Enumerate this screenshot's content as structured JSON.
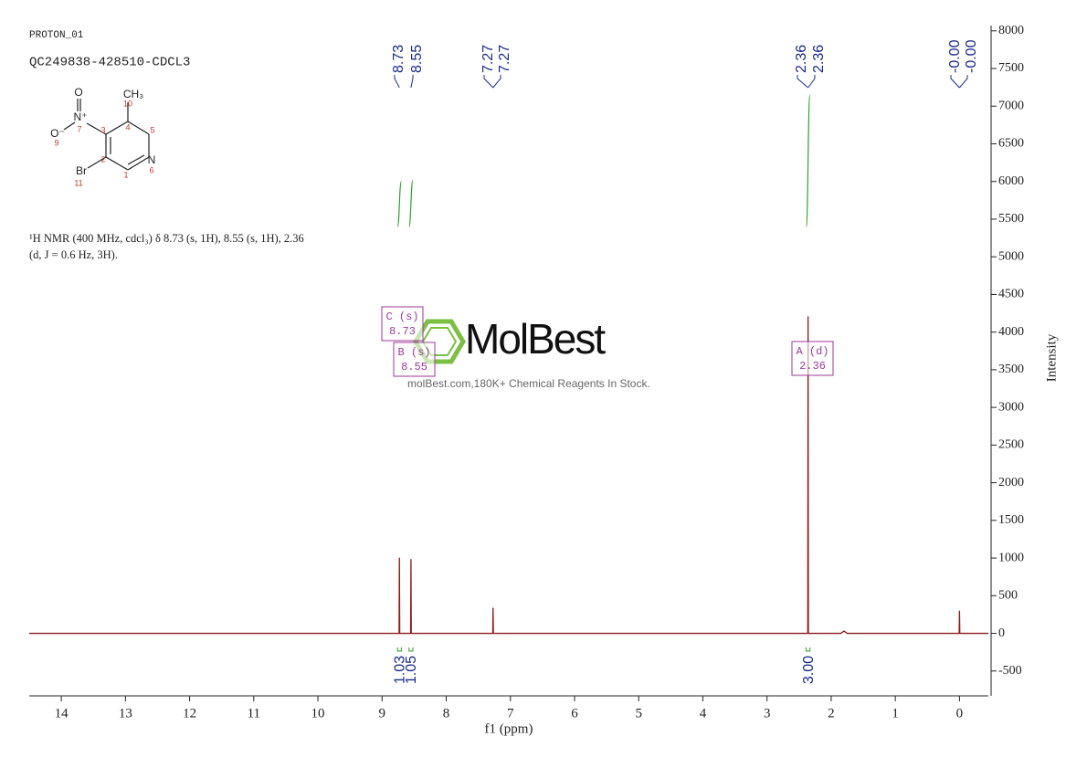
{
  "chart_data": {
    "type": "line",
    "header": [
      "PROTON_01",
      "QC249838-428510-CDCL3"
    ],
    "description": [
      "¹H NMR (400 MHz, cdcl₃) δ 8.73 (s, 1H), 8.55 (s, 1H), 2.36",
      "(d, J = 0.6 Hz, 3H)."
    ],
    "structure": {
      "atoms": [
        "O",
        "N⁺",
        "CH₃",
        "O⁻",
        "N",
        "Br"
      ],
      "numbers": [
        "10",
        "4",
        "3",
        "7",
        "9",
        "5",
        "2",
        "1",
        "6",
        "11"
      ]
    },
    "watermark": [
      "MolBest",
      "molBest.com,180K+ Chemical Reagents In Stock."
    ],
    "x_label": "f1 (ppm)",
    "y_label": "Intensity",
    "xlim": [
      14.5,
      -0.45
    ],
    "xticks": [
      14,
      13,
      12,
      11,
      10,
      9,
      8,
      7,
      6,
      5,
      4,
      3,
      2,
      1,
      0
    ],
    "ylim": [
      -830,
      8070
    ],
    "yticks": [
      -500,
      0,
      500,
      1000,
      1500,
      2000,
      2500,
      3000,
      3500,
      4000,
      4500,
      5000,
      5500,
      6000,
      6500,
      7000,
      7500,
      8000
    ],
    "color": "#8b1a1a",
    "x": [
      14.5,
      8.735,
      8.73,
      8.725,
      8.555,
      8.55,
      8.545,
      7.275,
      7.27,
      7.265,
      2.365,
      2.36,
      2.355,
      1.85,
      1.8,
      1.75,
      0.005,
      0,
      -0.005,
      -0.45
    ],
    "values": [
      0,
      0,
      1005,
      0,
      0,
      985,
      0,
      0,
      340,
      0,
      0,
      4210,
      0,
      0,
      30,
      0,
      0,
      300,
      0,
      0
    ],
    "peak_labels": [
      {
        "value": 8.73,
        "label": "8.73"
      },
      {
        "value": 8.55,
        "label": "8.55"
      },
      {
        "value": 7.27,
        "label": "7.27"
      },
      {
        "value": 7.27,
        "label": "7.27"
      },
      {
        "value": 2.36,
        "label": "2.36"
      },
      {
        "value": 2.36,
        "label": "2.36"
      },
      {
        "value": 0,
        "label": "-0.00"
      },
      {
        "value": 0,
        "label": "-0.00"
      }
    ],
    "integrals": [
      {
        "value": 1.03,
        "label": "1.03",
        "range": [
          8.76,
          8.7
        ]
      },
      {
        "value": 1.05,
        "label": "1.05",
        "range": [
          8.58,
          8.52
        ]
      },
      {
        "value": 3,
        "label": "3.00",
        "range": [
          2.39,
          2.33
        ]
      }
    ],
    "multiplets": [
      {
        "label": "C (s)",
        "shift": "8.73"
      },
      {
        "label": "B (s)",
        "shift": "8.55"
      },
      {
        "label": "A (d)",
        "shift": "2.36"
      }
    ],
    "integral_color": "#2e9e2e",
    "label_color": "#1a2a8a",
    "annotation_color": "#9b3a9b"
  }
}
